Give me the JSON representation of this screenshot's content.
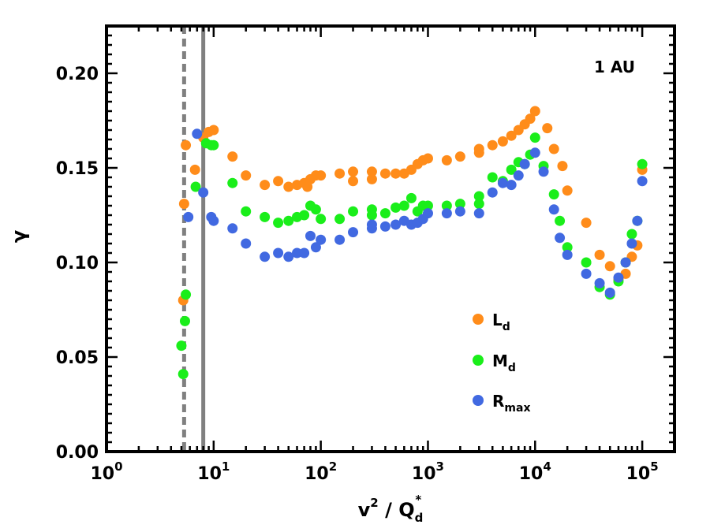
{
  "chart_data": {
    "type": "scatter",
    "x_scale": "log",
    "xlim": [
      1,
      200000
    ],
    "ylim": [
      0,
      0.225
    ],
    "xlabel": {
      "base": "v",
      "exp": "2",
      "mid": " / Q",
      "sub": "d",
      "sup": "*"
    },
    "ylabel": "γ",
    "annotation": "1 AU",
    "x_major_ticks": [
      {
        "value": 1,
        "base": "10",
        "exp": "0"
      },
      {
        "value": 10,
        "base": "10",
        "exp": "1"
      },
      {
        "value": 100,
        "base": "10",
        "exp": "2"
      },
      {
        "value": 1000,
        "base": "10",
        "exp": "3"
      },
      {
        "value": 10000,
        "base": "10",
        "exp": "4"
      },
      {
        "value": 100000,
        "base": "10",
        "exp": "5"
      }
    ],
    "y_major_ticks": [
      {
        "value": 0.0,
        "label": "0.00"
      },
      {
        "value": 0.05,
        "label": "0.05"
      },
      {
        "value": 0.1,
        "label": "0.10"
      },
      {
        "value": 0.15,
        "label": "0.15"
      },
      {
        "value": 0.2,
        "label": "0.20"
      }
    ],
    "vertical_lines": [
      {
        "x": 5.3,
        "style": "dashed",
        "color": "#808080"
      },
      {
        "x": 8.0,
        "style": "solid",
        "color": "#808080"
      }
    ],
    "legend_position": "lower-right",
    "series": [
      {
        "name": "L",
        "sub": "d",
        "color": "#ff8c1a",
        "x": [
          5.2,
          5.3,
          5.5,
          6.7,
          8.0,
          9.0,
          10.0,
          15,
          20,
          30,
          40,
          50,
          60,
          70,
          75,
          80,
          90,
          100,
          150,
          200,
          200,
          300,
          300,
          400,
          500,
          600,
          700,
          800,
          900,
          1000,
          1500,
          2000,
          3000,
          3000,
          4000,
          5000,
          6000,
          7000,
          8000,
          9000,
          10000,
          13000,
          15000,
          18000,
          20000,
          30000,
          40000,
          50000,
          60000,
          70000,
          80000,
          90000,
          100000
        ],
        "y": [
          0.08,
          0.131,
          0.162,
          0.149,
          0.166,
          0.169,
          0.17,
          0.156,
          0.146,
          0.141,
          0.143,
          0.14,
          0.141,
          0.142,
          0.14,
          0.144,
          0.146,
          0.146,
          0.147,
          0.143,
          0.148,
          0.144,
          0.148,
          0.147,
          0.147,
          0.147,
          0.149,
          0.152,
          0.154,
          0.155,
          0.154,
          0.156,
          0.158,
          0.16,
          0.162,
          0.164,
          0.167,
          0.17,
          0.173,
          0.176,
          0.18,
          0.171,
          0.16,
          0.151,
          0.138,
          0.121,
          0.104,
          0.098,
          0.091,
          0.094,
          0.103,
          0.109,
          0.149
        ]
      },
      {
        "name": "M",
        "sub": "d",
        "color": "#1aee1a",
        "x": [
          5.0,
          5.2,
          5.4,
          5.5,
          6.8,
          8.5,
          9.5,
          10,
          15,
          20,
          30,
          40,
          50,
          60,
          70,
          80,
          90,
          100,
          150,
          200,
          300,
          300,
          400,
          500,
          600,
          700,
          800,
          900,
          1000,
          1500,
          2000,
          3000,
          3000,
          4000,
          5000,
          6000,
          7000,
          8000,
          9000,
          10000,
          12000,
          15000,
          17000,
          20000,
          30000,
          40000,
          50000,
          60000,
          70000,
          80000,
          90000,
          100000
        ],
        "y": [
          0.056,
          0.041,
          0.069,
          0.083,
          0.14,
          0.163,
          0.162,
          0.162,
          0.142,
          0.127,
          0.124,
          0.121,
          0.122,
          0.124,
          0.125,
          0.13,
          0.128,
          0.123,
          0.123,
          0.127,
          0.125,
          0.128,
          0.126,
          0.129,
          0.13,
          0.134,
          0.127,
          0.13,
          0.13,
          0.13,
          0.131,
          0.131,
          0.135,
          0.145,
          0.143,
          0.149,
          0.153,
          0.152,
          0.157,
          0.166,
          0.151,
          0.136,
          0.122,
          0.108,
          0.1,
          0.087,
          0.083,
          0.09,
          0.1,
          0.115,
          0.122,
          0.152
        ]
      },
      {
        "name": "R",
        "sub": "max",
        "color": "#4169e1",
        "x": [
          5.8,
          7.0,
          8.0,
          9.5,
          10,
          15,
          20,
          30,
          40,
          50,
          60,
          70,
          80,
          90,
          100,
          150,
          200,
          300,
          300,
          400,
          500,
          600,
          700,
          800,
          900,
          1000,
          1500,
          2000,
          3000,
          4000,
          5000,
          6000,
          7000,
          8000,
          10000,
          12000,
          15000,
          17000,
          20000,
          30000,
          40000,
          50000,
          60000,
          70000,
          80000,
          90000,
          100000
        ],
        "y": [
          0.124,
          0.168,
          0.137,
          0.124,
          0.122,
          0.118,
          0.11,
          0.103,
          0.105,
          0.103,
          0.105,
          0.105,
          0.114,
          0.108,
          0.112,
          0.112,
          0.116,
          0.118,
          0.12,
          0.119,
          0.12,
          0.122,
          0.12,
          0.121,
          0.123,
          0.126,
          0.126,
          0.127,
          0.126,
          0.137,
          0.142,
          0.141,
          0.146,
          0.152,
          0.158,
          0.148,
          0.128,
          0.113,
          0.104,
          0.094,
          0.089,
          0.084,
          0.092,
          0.1,
          0.11,
          0.122,
          0.143
        ]
      }
    ]
  }
}
